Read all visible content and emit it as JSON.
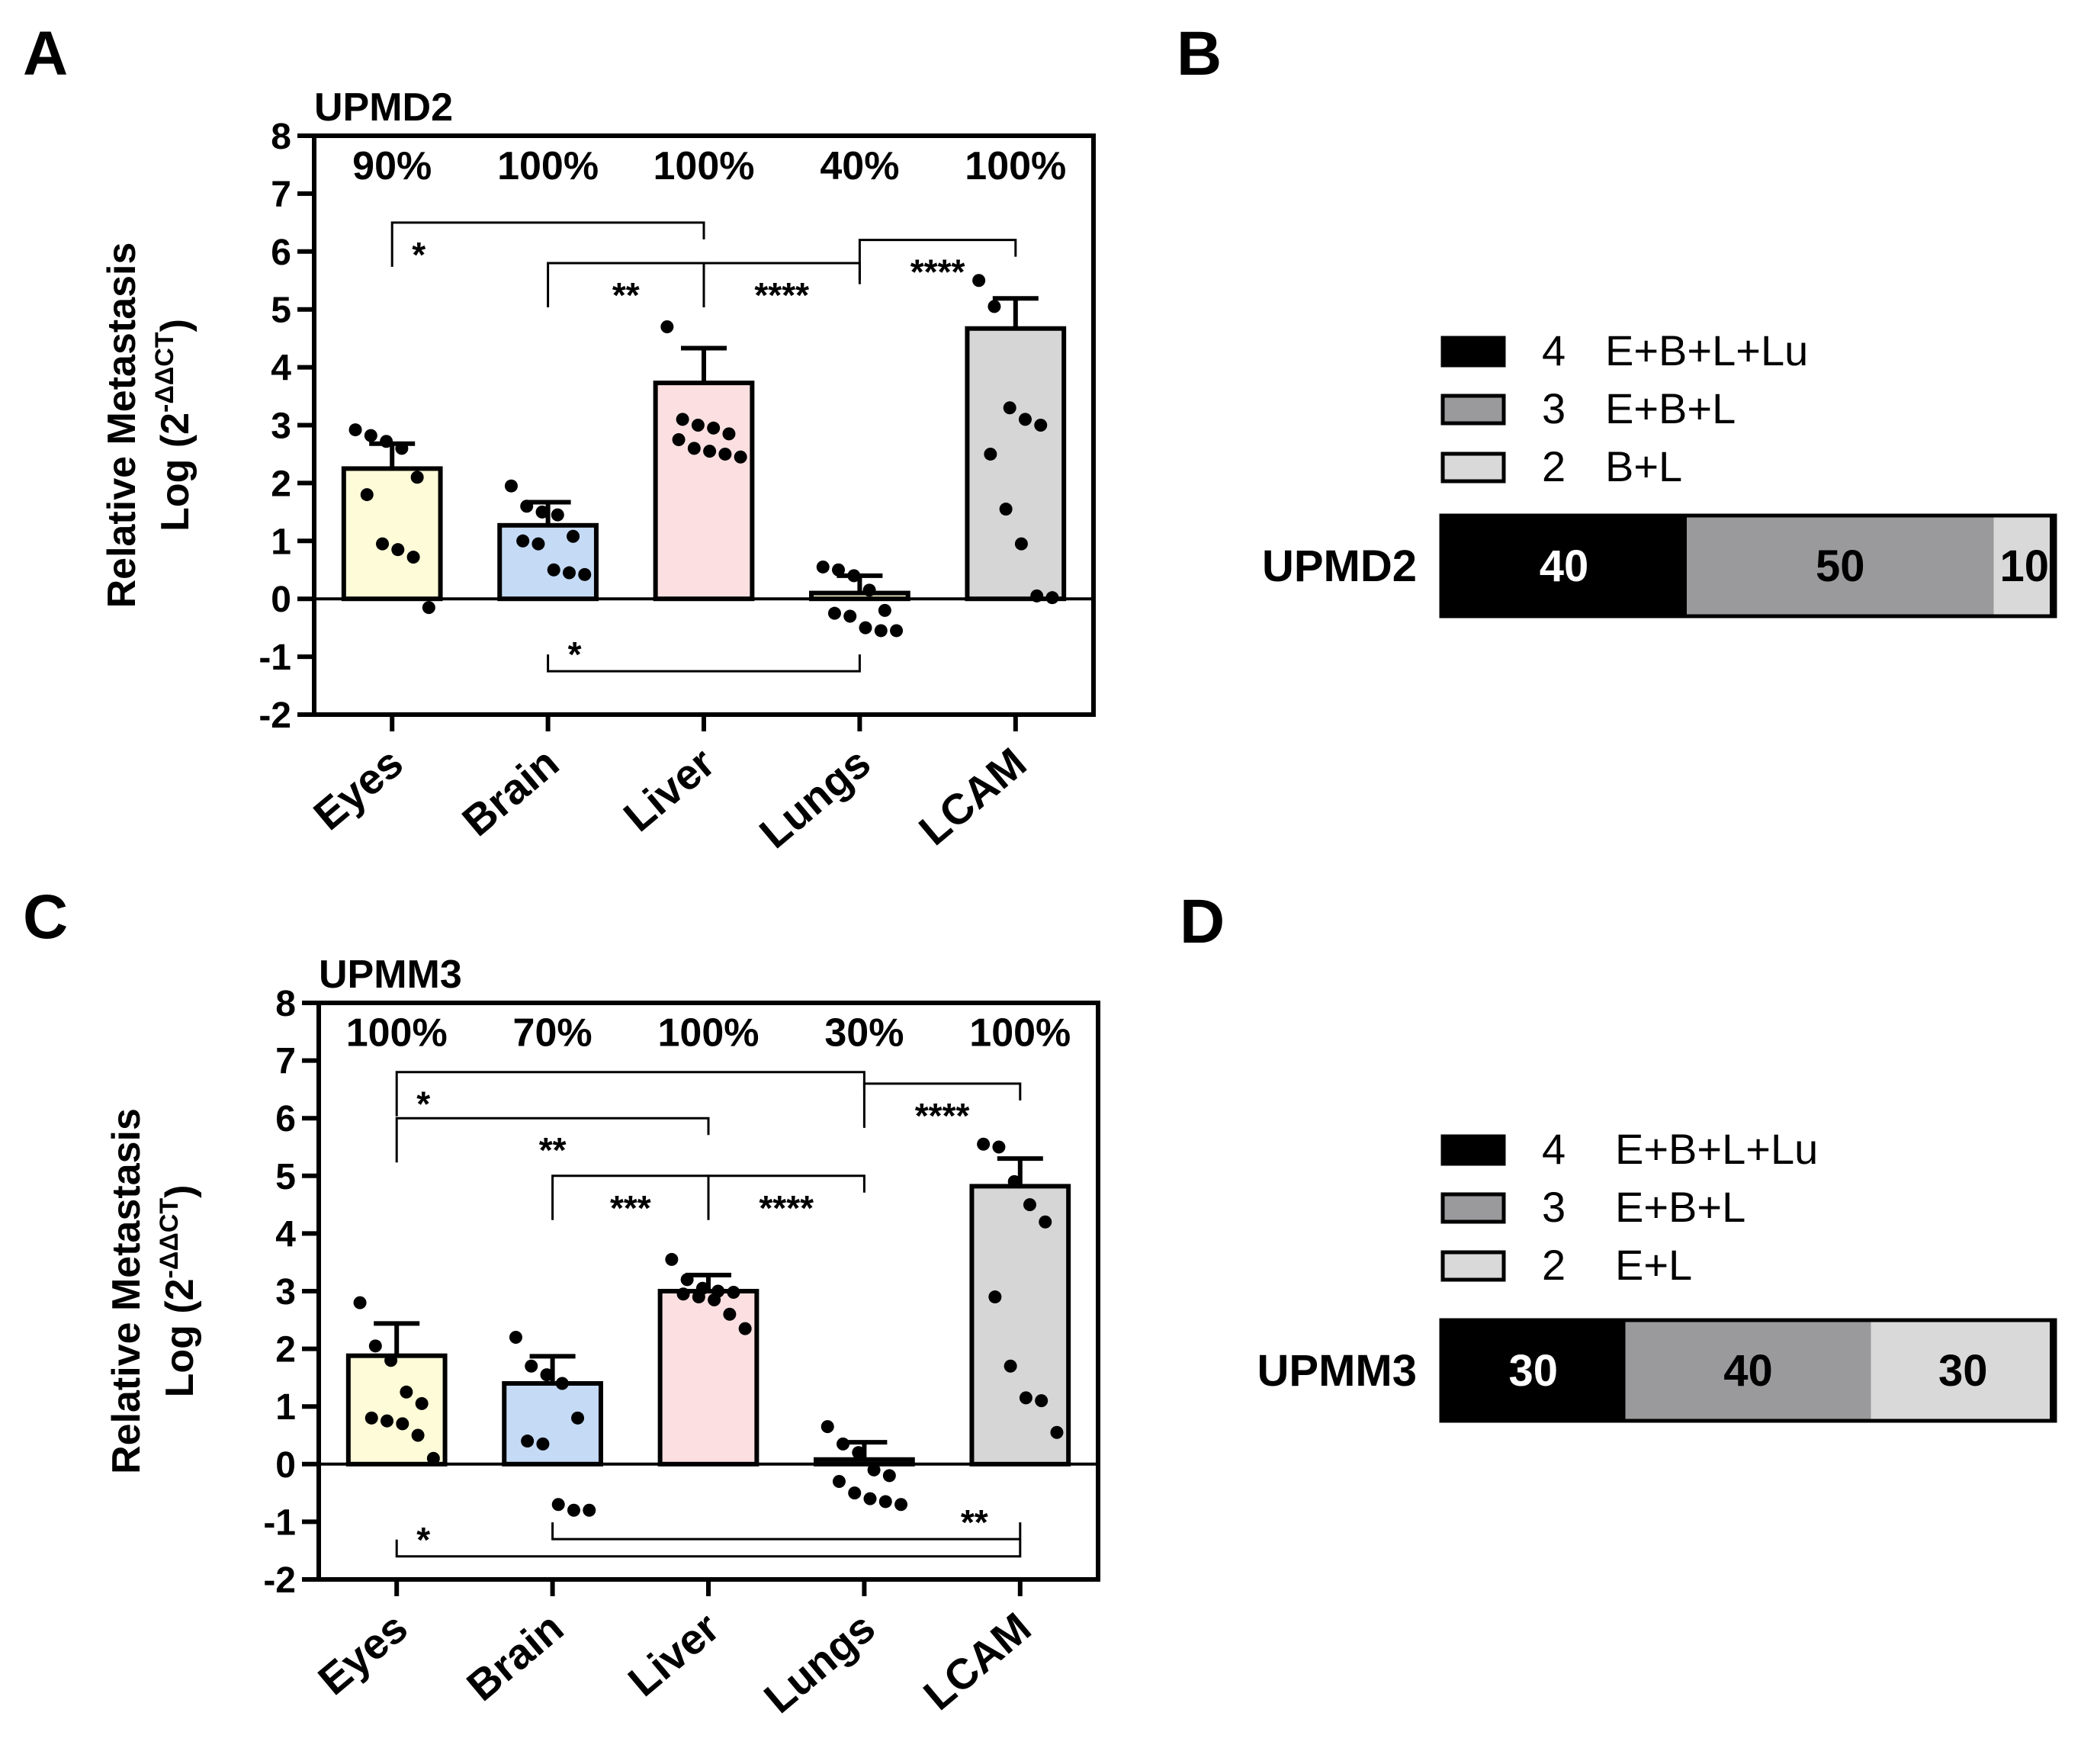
{
  "panel_labels": {
    "A": "A",
    "B": "B",
    "C": "C",
    "D": "D"
  },
  "y_axis_label_line1": "Relative Metastasis",
  "y_axis_label_line2_prefix": "Log (2",
  "y_axis_label_superscript": "-ΔΔCT",
  "y_axis_label_line2_suffix": ")",
  "chart_data": [
    {
      "panel": "A",
      "type": "bar",
      "title": "UPMD2",
      "categories": [
        "Eyes",
        "Brain",
        "Liver",
        "Lungs",
        "LCAM"
      ],
      "ylim": [
        -2,
        8
      ],
      "yticks": [
        -2,
        -1,
        0,
        1,
        2,
        3,
        4,
        5,
        6,
        7,
        8
      ],
      "xlabel": "",
      "ylabel": "Relative Metastasis Log (2-ΔΔCT)",
      "values": [
        2.25,
        1.27,
        3.73,
        0.1,
        4.67
      ],
      "errors": [
        0.43,
        0.4,
        0.6,
        0.3,
        0.52
      ],
      "bar_colors": [
        "#fdfbd8",
        "#c5daf5",
        "#fce0e1",
        "#fdfbd8",
        "#d6d6d6"
      ],
      "percent_labels": [
        "90%",
        "100%",
        "100%",
        "40%",
        "100%"
      ],
      "points": [
        [
          2.92,
          2.82,
          2.72,
          2.6,
          2.1,
          1.8,
          0.95,
          0.85,
          0.72,
          -0.15
        ],
        [
          1.95,
          1.6,
          1.5,
          1.45,
          1.08,
          1.0,
          0.95,
          0.5,
          0.45,
          0.42
        ],
        [
          4.7,
          3.1,
          3.0,
          2.95,
          2.85,
          2.75,
          2.6,
          2.55,
          2.5,
          2.45
        ],
        [
          0.55,
          0.5,
          0.4,
          0.15,
          -0.2,
          -0.25,
          -0.3,
          -0.5,
          -0.55,
          -0.55
        ],
        [
          5.5,
          5.05,
          3.3,
          3.1,
          3.0,
          2.5,
          1.55,
          0.95,
          0.05,
          0.02
        ]
      ],
      "significance": [
        {
          "from": 0,
          "to": 2,
          "level": 6.5,
          "label": "*",
          "dir": "down"
        },
        {
          "from": 1,
          "to": 2,
          "level": 5.8,
          "label": "**",
          "dir": "down"
        },
        {
          "from": 2,
          "to": 3,
          "level": 5.8,
          "label": "****",
          "dir": "down"
        },
        {
          "from": 3,
          "to": 4,
          "level": 6.2,
          "label": "****",
          "dir": "down"
        },
        {
          "from": 1,
          "to": 3,
          "level": -1.25,
          "label": "*",
          "dir": "up"
        }
      ]
    },
    {
      "panel": "C",
      "type": "bar",
      "title": "UPMM3",
      "categories": [
        "Eyes",
        "Brain",
        "Liver",
        "Lungs",
        "LCAM"
      ],
      "ylim": [
        -2,
        8
      ],
      "yticks": [
        -2,
        -1,
        0,
        1,
        2,
        3,
        4,
        5,
        6,
        7,
        8
      ],
      "xlabel": "",
      "ylabel": "Relative Metastasis Log (2-ΔΔCT)",
      "values": [
        1.88,
        1.4,
        3.0,
        0.08,
        4.82
      ],
      "errors": [
        0.56,
        0.47,
        0.28,
        0.3,
        0.48
      ],
      "bar_colors": [
        "#fdfbd8",
        "#c5daf5",
        "#fce0e1",
        "#fdfbd8",
        "#d6d6d6"
      ],
      "percent_labels": [
        "100%",
        "70%",
        "100%",
        "30%",
        "100%"
      ],
      "points": [
        [
          2.8,
          2.05,
          1.8,
          1.25,
          1.05,
          0.8,
          0.75,
          0.7,
          0.5,
          0.1
        ],
        [
          2.2,
          1.7,
          1.55,
          1.4,
          0.8,
          0.4,
          0.35,
          -0.7,
          -0.8,
          -0.8
        ],
        [
          3.55,
          3.2,
          3.05,
          3.0,
          2.98,
          2.95,
          2.9,
          2.85,
          2.6,
          2.35
        ],
        [
          0.65,
          0.35,
          0.2,
          -0.1,
          -0.2,
          -0.3,
          -0.5,
          -0.6,
          -0.65,
          -0.7
        ],
        [
          5.55,
          5.5,
          4.9,
          4.5,
          4.2,
          2.9,
          1.7,
          1.15,
          1.1,
          0.55
        ]
      ],
      "significance": [
        {
          "from": 0,
          "to": 3,
          "level": 6.8,
          "label": "*",
          "dir": "down"
        },
        {
          "from": 0,
          "to": 2,
          "level": 6.0,
          "label": "**",
          "dir": "down"
        },
        {
          "from": 1,
          "to": 2,
          "level": 5.0,
          "label": "***",
          "dir": "down"
        },
        {
          "from": 2,
          "to": 3,
          "level": 5.0,
          "label": "****",
          "dir": "down"
        },
        {
          "from": 3,
          "to": 4,
          "level": 6.6,
          "label": "****",
          "dir": "down"
        },
        {
          "from": 1,
          "to": 4,
          "level": -1.3,
          "label": "**",
          "dir": "up"
        },
        {
          "from": 0,
          "to": 4,
          "level": -1.6,
          "label": "*",
          "dir": "up"
        }
      ]
    },
    {
      "panel": "B",
      "type": "bar",
      "subtype": "stacked-horizontal",
      "row_label": "UPMD2",
      "legend": [
        {
          "num": "4",
          "text": "E+B+L+Lu",
          "color": "#000000"
        },
        {
          "num": "3",
          "text": "E+B+L",
          "color": "#9a9a9c"
        },
        {
          "num": "2",
          "text": "B+L",
          "color": "#d9d9d9"
        }
      ],
      "segments": [
        {
          "value": 40,
          "label": "40",
          "color": "#000000",
          "text_color": "#ffffff"
        },
        {
          "value": 50,
          "label": "50",
          "color": "#9a9a9c",
          "text_color": "#000000"
        },
        {
          "value": 10,
          "label": "10",
          "color": "#d9d9d9",
          "text_color": "#000000"
        }
      ]
    },
    {
      "panel": "D",
      "type": "bar",
      "subtype": "stacked-horizontal",
      "row_label": "UPMM3",
      "legend": [
        {
          "num": "4",
          "text": "E+B+L+Lu",
          "color": "#000000"
        },
        {
          "num": "3",
          "text": "E+B+L",
          "color": "#9a9a9c"
        },
        {
          "num": "2",
          "text": "E+L",
          "color": "#d9d9d9"
        }
      ],
      "segments": [
        {
          "value": 30,
          "label": "30",
          "color": "#000000",
          "text_color": "#ffffff"
        },
        {
          "value": 40,
          "label": "40",
          "color": "#9a9a9c",
          "text_color": "#000000"
        },
        {
          "value": 30,
          "label": "30",
          "color": "#d9d9d9",
          "text_color": "#000000"
        }
      ]
    }
  ]
}
